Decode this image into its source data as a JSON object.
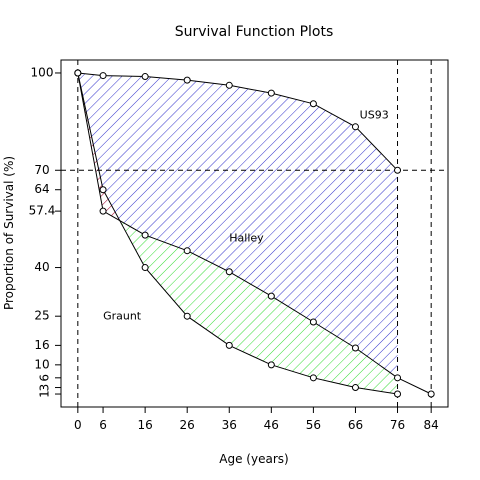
{
  "chart_data": {
    "type": "line",
    "title": "Survival Function Plots",
    "xlabel": "Age (years)",
    "ylabel": "Proportion of Survival (%)",
    "xlim": [
      -4,
      88
    ],
    "ylim": [
      -3,
      104
    ],
    "x_ticks": [
      0,
      6,
      16,
      26,
      36,
      46,
      56,
      66,
      76,
      84
    ],
    "y_ticks": [
      1,
      3,
      6,
      10,
      16,
      25,
      40,
      57.4,
      64,
      70,
      100
    ],
    "y_tick_labels": [
      "1",
      "3",
      "6",
      "10",
      "16",
      "25",
      "40",
      "57.4",
      "64",
      "70",
      "100"
    ],
    "reference_lines": {
      "vertical": [
        0,
        76,
        84
      ],
      "horizontal": [
        70
      ]
    },
    "series": [
      {
        "name": "US93",
        "color": "#000000",
        "x": [
          0,
          6,
          16,
          26,
          36,
          46,
          56,
          66,
          76
        ],
        "y": [
          100,
          99.2,
          98.9,
          97.8,
          96.2,
          93.8,
          90.5,
          83.4,
          70
        ]
      },
      {
        "name": "Halley",
        "color": "#000000",
        "x": [
          0,
          6,
          16,
          26,
          36,
          46,
          56,
          66,
          76,
          84
        ],
        "y": [
          100,
          57.4,
          50,
          45.2,
          38.7,
          31.2,
          23.2,
          15.2,
          6,
          1
        ]
      },
      {
        "name": "Graunt",
        "color": "#000000",
        "x": [
          0,
          6,
          16,
          26,
          36,
          46,
          56,
          66,
          76
        ],
        "y": [
          100,
          64,
          40,
          25,
          16,
          10,
          6,
          3,
          1
        ]
      }
    ],
    "shaded_regions": [
      {
        "between": [
          "US93",
          "Halley"
        ],
        "color": "#3333cc"
      },
      {
        "between": [
          "Halley",
          "Graunt"
        ],
        "color": "#33dd33"
      },
      {
        "between": [
          "Graunt",
          "Halley"
        ],
        "color": "#dd3333"
      }
    ],
    "grid": false,
    "annotations": [
      {
        "text": "US93",
        "x": 67,
        "y": 86
      },
      {
        "text": "Halley",
        "x": 36,
        "y": 48
      },
      {
        "text": "Graunt",
        "x": 6,
        "y": 24
      }
    ]
  }
}
